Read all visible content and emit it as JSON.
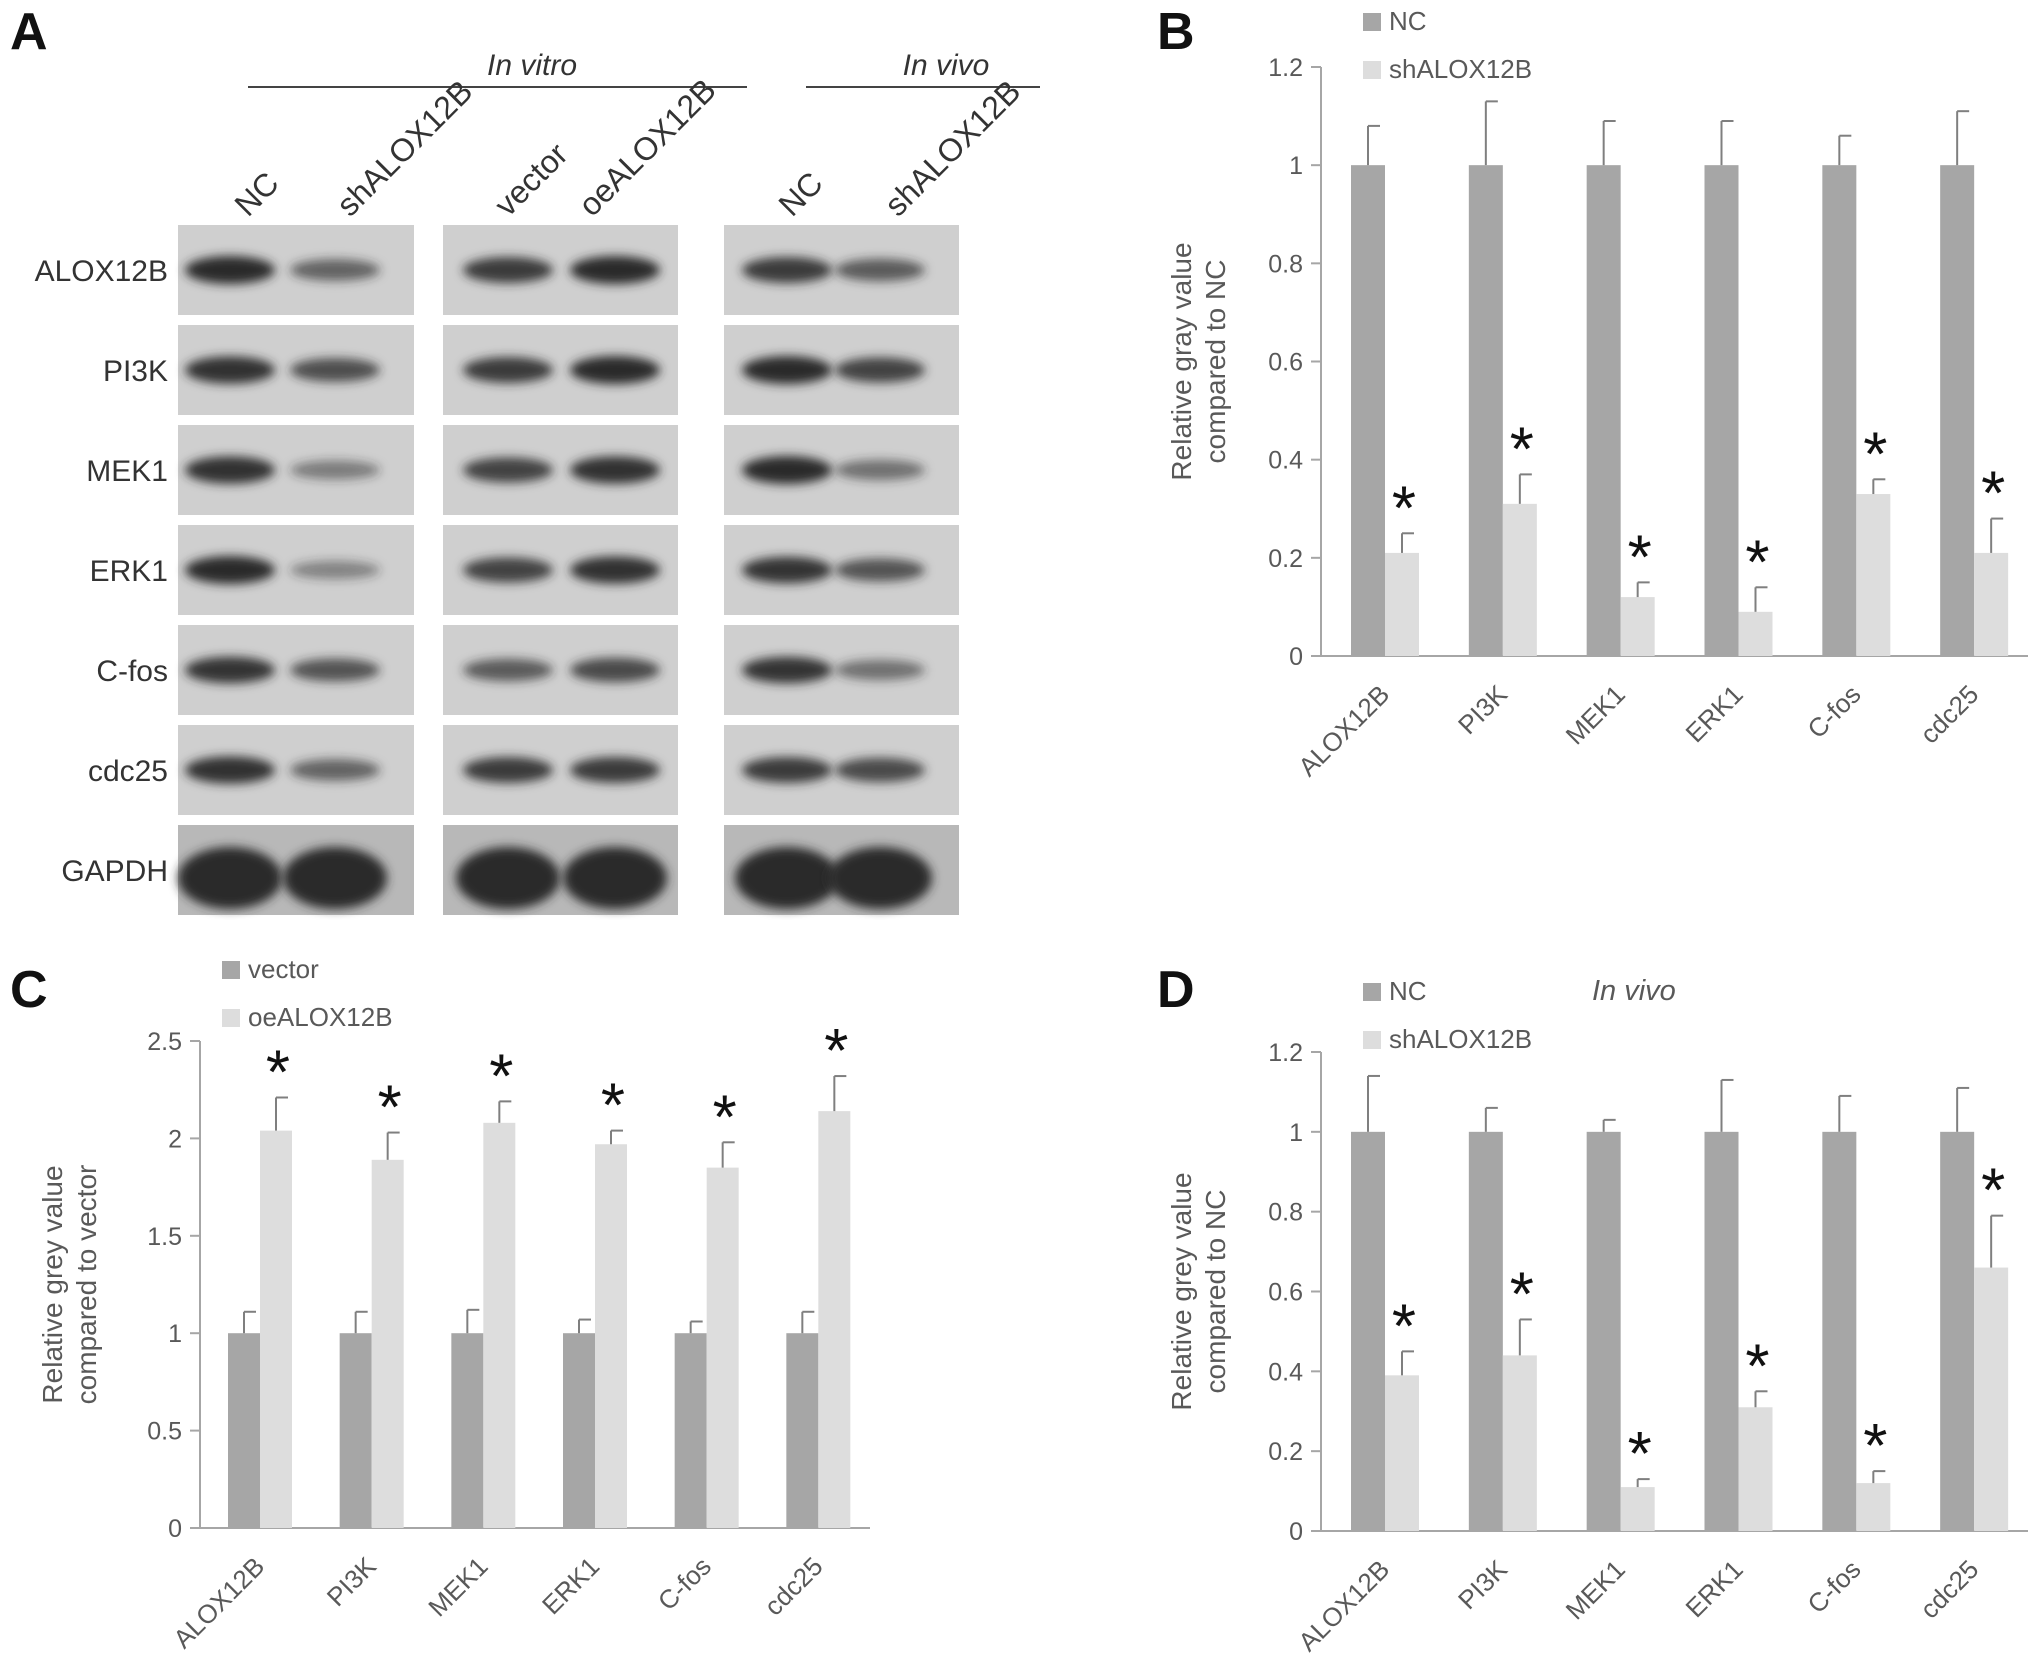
{
  "panels": {
    "a": "A",
    "b": "B",
    "c": "C",
    "d": "D"
  },
  "blot": {
    "groups": [
      {
        "title": "In vitro",
        "lanes": [
          "NC",
          "shALOX12B",
          "vector",
          "oeALOX12B"
        ]
      },
      {
        "title": "In vivo",
        "lanes": [
          "NC",
          "shALOX12B"
        ]
      }
    ],
    "rows": [
      "ALOX12B",
      "PI3K",
      "MEK1",
      "ERK1",
      "C-fos",
      "cdc25",
      "GAPDH"
    ],
    "band_intensity": {
      "comment_free": true,
      "invitro_sh": [
        [
          1.0,
          0.55
        ],
        [
          0.95,
          0.7
        ],
        [
          0.95,
          0.35
        ],
        [
          1.0,
          0.3
        ],
        [
          0.9,
          0.65
        ],
        [
          0.95,
          0.55
        ],
        [
          1.0,
          1.0
        ]
      ],
      "invitro_oe": [
        [
          0.85,
          1.0
        ],
        [
          0.85,
          1.0
        ],
        [
          0.8,
          0.95
        ],
        [
          0.8,
          0.95
        ],
        [
          0.6,
          0.75
        ],
        [
          0.85,
          0.85
        ],
        [
          1.0,
          1.0
        ]
      ],
      "invivo": [
        [
          0.85,
          0.6
        ],
        [
          1.0,
          0.8
        ],
        [
          1.0,
          0.45
        ],
        [
          0.9,
          0.65
        ],
        [
          0.9,
          0.45
        ],
        [
          0.85,
          0.75
        ],
        [
          1.0,
          1.0
        ]
      ]
    }
  },
  "colors": {
    "series_dark": "#a6a6a6",
    "series_light": "#dddddd",
    "axis": "#a6a6a6",
    "text": "#595959",
    "blot_bg": "#cfcfcf",
    "band": "#2a2a2a"
  },
  "chart_data": [
    {
      "panel": "B",
      "type": "bar",
      "title": "",
      "xlabel": "",
      "ylabel": "Relative gray value compared to NC",
      "ylabel_lines": [
        "Relative gray value",
        "compared to NC"
      ],
      "categories": [
        "ALOX12B",
        "PI3K",
        "MEK1",
        "ERK1",
        "C-fos",
        "cdc25"
      ],
      "series": [
        {
          "name": "NC",
          "values": [
            1,
            1,
            1,
            1,
            1,
            1
          ],
          "errors": [
            0.08,
            0.13,
            0.09,
            0.09,
            0.06,
            0.11
          ]
        },
        {
          "name": "shALOX12B",
          "values": [
            0.21,
            0.31,
            0.12,
            0.09,
            0.33,
            0.21
          ],
          "errors": [
            0.04,
            0.06,
            0.03,
            0.05,
            0.03,
            0.07
          ]
        }
      ],
      "ylim": [
        0,
        1.2
      ],
      "yticks": [
        "0",
        "0.2",
        "0.4",
        "0.6",
        "0.8",
        "1",
        "1.2"
      ],
      "ytick_values": [
        0,
        0.2,
        0.4,
        0.6,
        0.8,
        1,
        1.2
      ],
      "significance": [
        "*",
        "*",
        "*",
        "*",
        "*",
        "*"
      ],
      "legend_position": "top-left",
      "grid": false
    },
    {
      "panel": "C",
      "type": "bar",
      "title": "",
      "xlabel": "",
      "ylabel": "Relative grey value compared to vector",
      "ylabel_lines": [
        "Relative grey value",
        "compared to vector"
      ],
      "categories": [
        "ALOX12B",
        "PI3K",
        "MEK1",
        "ERK1",
        "C-fos",
        "cdc25"
      ],
      "series": [
        {
          "name": "vector",
          "values": [
            1,
            1,
            1,
            1,
            1,
            1
          ],
          "errors": [
            0.11,
            0.11,
            0.12,
            0.07,
            0.06,
            0.11
          ]
        },
        {
          "name": "oeALOX12B",
          "values": [
            2.04,
            1.89,
            2.08,
            1.97,
            1.85,
            2.14
          ],
          "errors": [
            0.17,
            0.14,
            0.11,
            0.07,
            0.13,
            0.18
          ]
        }
      ],
      "ylim": [
        0,
        2.5
      ],
      "yticks": [
        "0",
        "0.5",
        "1",
        "1.5",
        "2",
        "2.5"
      ],
      "ytick_values": [
        0,
        0.5,
        1,
        1.5,
        2,
        2.5
      ],
      "significance": [
        "*",
        "*",
        "*",
        "*",
        "*",
        "*"
      ],
      "legend_position": "top-left",
      "grid": false
    },
    {
      "panel": "D",
      "type": "bar",
      "title": "In vivo",
      "xlabel": "",
      "ylabel": "Relative grey value compared to NC",
      "ylabel_lines": [
        "Relative grey value",
        "compared to NC"
      ],
      "categories": [
        "ALOX12B",
        "PI3K",
        "MEK1",
        "ERK1",
        "C-fos",
        "cdc25"
      ],
      "series": [
        {
          "name": "NC",
          "values": [
            1,
            1,
            1,
            1,
            1,
            1
          ],
          "errors": [
            0.14,
            0.06,
            0.03,
            0.13,
            0.09,
            0.11
          ]
        },
        {
          "name": "shALOX12B",
          "values": [
            0.39,
            0.44,
            0.11,
            0.31,
            0.12,
            0.66
          ],
          "errors": [
            0.06,
            0.09,
            0.02,
            0.04,
            0.03,
            0.13
          ]
        }
      ],
      "ylim": [
        0,
        1.2
      ],
      "yticks": [
        "0",
        "0.2",
        "0.4",
        "0.6",
        "0.8",
        "1",
        "1.2"
      ],
      "ytick_values": [
        0,
        0.2,
        0.4,
        0.6,
        0.8,
        1,
        1.2
      ],
      "significance": [
        "*",
        "*",
        "*",
        "*",
        "*",
        "*"
      ],
      "legend_position": "top-left",
      "grid": false
    }
  ]
}
